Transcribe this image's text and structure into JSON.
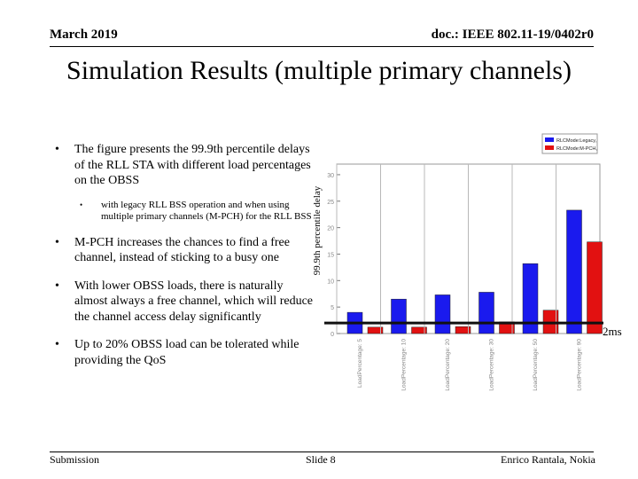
{
  "header": {
    "date": "March 2019",
    "doc": "doc.: IEEE 802.11-19/0402r0"
  },
  "title": "Simulation Results (multiple primary channels)",
  "bullets": [
    "The figure presents the 99.9th percentile delays of the RLL STA with different load percentages on the OBSS",
    "with legacy RLL BSS operation and when using multiple primary channels (M-PCH) for the RLL BSS",
    "M-PCH increases the chances to find a free channel, instead of sticking to a busy one",
    "With lower OBSS loads, there is naturally almost always a free channel, which will reduce the channel access delay significantly",
    "Up to 20% OBSS load can be tolerated while providing the QoS"
  ],
  "threshold_label": "2ms",
  "footer": {
    "left": "Submission",
    "middle": "Slide 8",
    "right": "Enrico Rantala, Nokia"
  },
  "chart_data": {
    "type": "bar",
    "ylabel": "99.9th percentile delay",
    "ylim": [
      0,
      32
    ],
    "yticks": [
      0,
      5,
      10,
      15,
      20,
      25,
      30
    ],
    "categories": [
      "LoadPercentage: 5",
      "LoadPercentage: 10",
      "LoadPercentage: 20",
      "LoadPercentage: 30",
      "LoadPercentage: 50",
      "LoadPercentage: 90"
    ],
    "series": [
      {
        "name": "RLCMode:Legacy,",
        "color": "#1a1aee",
        "values": [
          4.0,
          6.5,
          7.3,
          7.8,
          13.2,
          23.3
        ]
      },
      {
        "name": "RLCMode:M-PCH,",
        "color": "#e21111",
        "values": [
          1.2,
          1.2,
          1.3,
          2.2,
          4.4,
          17.3
        ]
      }
    ],
    "threshold": 2,
    "legend": "top-right"
  }
}
